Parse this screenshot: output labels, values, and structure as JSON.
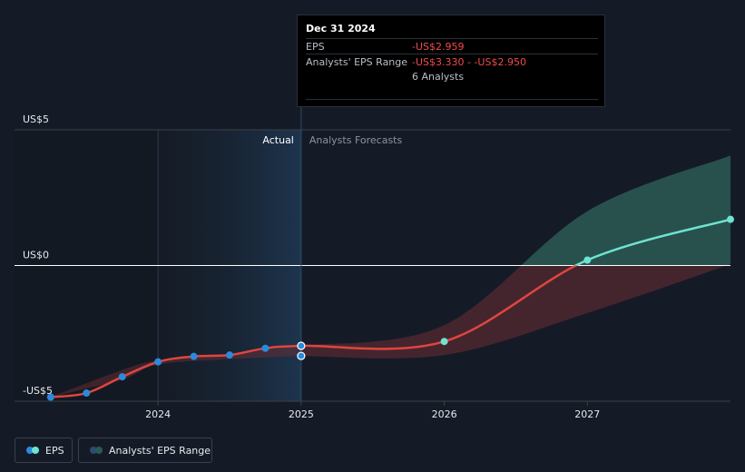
{
  "tooltip": {
    "date": "Dec 31 2024",
    "rows": [
      {
        "label": "EPS",
        "value": "-US$2.959"
      },
      {
        "label": "Analysts' EPS Range",
        "value": "-US$3.330 - -US$2.950"
      },
      {
        "label": "",
        "value": "6 Analysts"
      }
    ]
  },
  "sections": {
    "actual": "Actual",
    "forecast": "Analysts Forecasts"
  },
  "legend": {
    "eps": "EPS",
    "range": "Analysts' EPS Range"
  },
  "colors": {
    "background": "#151b26",
    "past_band": "#1f2a39",
    "eps_negative": "#e0453f",
    "eps_positive": "#6fe3d1",
    "range_negative": "#6b2d34",
    "range_positive": "#2b5a55",
    "point": "#2a8bdc"
  },
  "chart_data": {
    "type": "line",
    "ylabels": [
      {
        "value": 5,
        "text": "US$5"
      },
      {
        "value": 0,
        "text": "US$0"
      },
      {
        "value": -5,
        "text": "-US$5"
      }
    ],
    "x_ticks": [
      {
        "value": 2024,
        "text": "2024"
      },
      {
        "value": 2025,
        "text": "2025"
      },
      {
        "value": 2026,
        "text": "2026"
      },
      {
        "value": 2027,
        "text": "2027"
      }
    ],
    "xlim": [
      2023.2,
      2028.0
    ],
    "ylim": [
      -5.0,
      5.0
    ],
    "series": [
      {
        "name": "EPS",
        "actual": [
          [
            2023.25,
            -4.85
          ],
          [
            2023.5,
            -4.7
          ],
          [
            2023.75,
            -4.1
          ],
          [
            2024.0,
            -3.55
          ],
          [
            2024.25,
            -3.35
          ],
          [
            2024.5,
            -3.3
          ],
          [
            2024.75,
            -3.05
          ],
          [
            2025.0,
            -2.959
          ]
        ],
        "forecast": [
          [
            2025.0,
            -2.959
          ],
          [
            2026.0,
            -2.8
          ],
          [
            2027.0,
            0.2
          ],
          [
            2028.0,
            1.7
          ]
        ]
      }
    ],
    "range": {
      "name": "Analysts' EPS Range",
      "upper": [
        [
          2025.0,
          -2.95
        ],
        [
          2026.0,
          -2.2
        ],
        [
          2027.0,
          2.0
        ],
        [
          2028.0,
          4.05
        ]
      ],
      "lower": [
        [
          2028.0,
          0.05
        ],
        [
          2027.0,
          -1.75
        ],
        [
          2026.0,
          -3.3
        ],
        [
          2025.0,
          -3.33
        ]
      ],
      "past_upper": [
        [
          2023.25,
          -4.85
        ],
        [
          2023.75,
          -3.85
        ],
        [
          2024.0,
          -3.5
        ],
        [
          2024.5,
          -3.25
        ],
        [
          2025.0,
          -2.95
        ]
      ],
      "past_lower": [
        [
          2025.0,
          -3.33
        ],
        [
          2024.5,
          -3.45
        ],
        [
          2024.0,
          -3.65
        ],
        [
          2023.75,
          -4.2
        ],
        [
          2023.25,
          -4.85
        ]
      ]
    },
    "highlight_x": 2025.0,
    "highlight_points": [
      -2.959,
      -3.33
    ]
  }
}
